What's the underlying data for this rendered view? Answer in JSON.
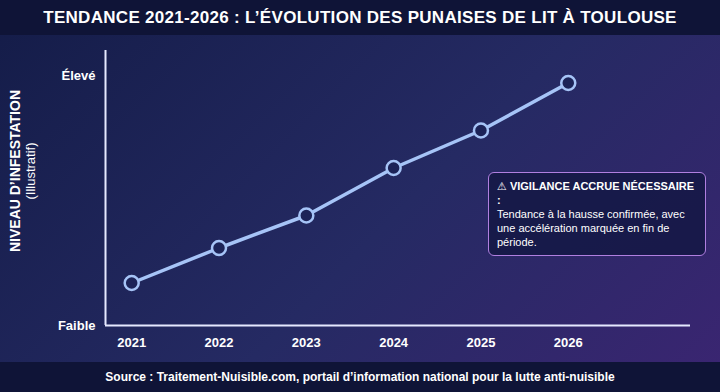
{
  "chart_data": {
    "type": "line",
    "title": "TENDANCE 2021-2026 : L’ÉVOLUTION DES PUNAISES DE LIT À TOULOUSE",
    "ylabel": "NIVEAU D’INFESTATION",
    "ylabel_note": "(Illustratif)",
    "annotation_title": "⚠ VIGILANCE ACCRUE NÉCESSAIRE :",
    "annotation": "Tendance à la hausse confirmée, avec une accélération marquée en fin de période.",
    "caption": "Source : Traitement-Nuisible.com, portail d’information national pour la lutte anti-nuisible",
    "x": [
      2021,
      2022,
      2023,
      2024,
      2025,
      2026
    ],
    "values": [
      1.7,
      3.1,
      4.4,
      6.3,
      7.8,
      9.7
    ],
    "color": "#a6c4f7",
    "marker": "circle",
    "xlim": [
      2020.7,
      2027.4
    ],
    "xticks": [
      2021,
      2022,
      2023,
      2024,
      2025,
      2026
    ],
    "ylim": [
      0,
      11
    ],
    "yticks": [
      {
        "value": 0,
        "label": "Faible"
      },
      {
        "value": 10,
        "label": "Élevé"
      }
    ],
    "grid": false
  }
}
